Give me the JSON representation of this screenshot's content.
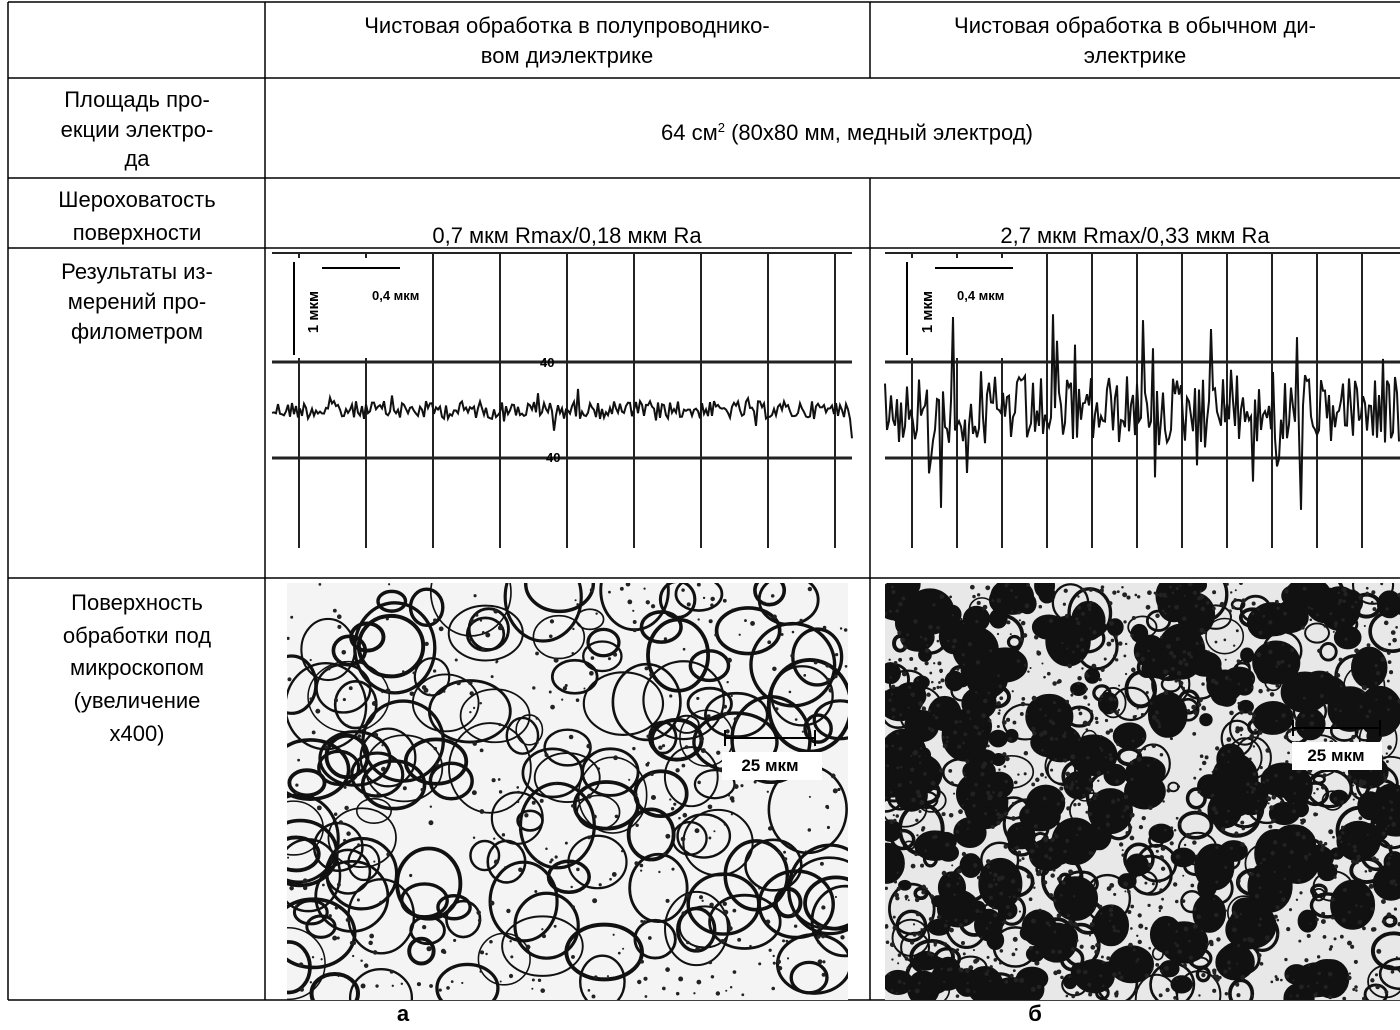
{
  "header": {
    "col1": [
      "Чистовая обработка в полупроводнико-",
      "вом диэлектрике"
    ],
    "col2": [
      "Чистовая обработка в обычном ди-",
      "электрике"
    ]
  },
  "electrode_area": {
    "label": [
      "Площадь про-",
      "екции электро-",
      "да"
    ],
    "value_main": "64 см",
    "value_sup": "2",
    "value_rest": " (80х80 мм, медный электрод)"
  },
  "roughness": {
    "label": [
      "Шероховатость",
      "поверхности"
    ],
    "col1": "0,7 мкм Rmax/0,18 мкм Ra",
    "col2": "2,7 мкм Rmax/0,33 мкм Ra"
  },
  "profilometer": {
    "label": [
      "Результаты из-",
      "мерений про-",
      "филометром"
    ],
    "panel_a": {
      "scale_v": "1 мкм",
      "scale_h": "0,4 мкм",
      "mark_top": "40",
      "mark_bottom": "40"
    },
    "panel_b": {
      "scale_v": "1 мкм",
      "scale_h": "0,4 мкм"
    }
  },
  "microscope": {
    "label": [
      "Поверхность",
      "обработки под",
      "микроскопом",
      "(увеличение",
      "х400)"
    ],
    "panel_a": {
      "scale": "25 мкм"
    },
    "panel_b": {
      "scale": "25 мкм"
    }
  },
  "captions": {
    "a": "а",
    "b": "б"
  }
}
